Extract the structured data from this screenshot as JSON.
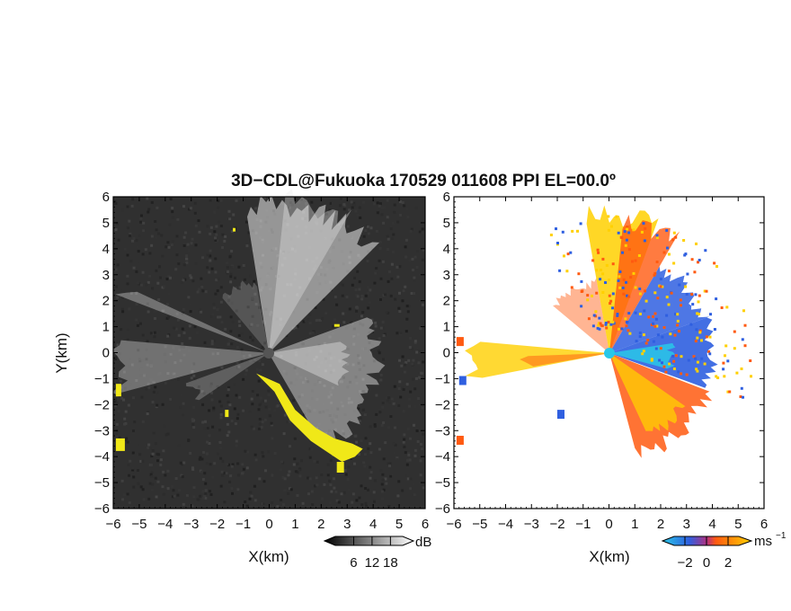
{
  "chart_data": [
    {
      "type": "heatmap",
      "panel": "left",
      "title": "3D−CDL@Fukuoka 170529 011608 PPI EL=00.0º",
      "xlabel": "X(km)",
      "ylabel": "Y(km)",
      "xlim": [
        -6,
        6
      ],
      "ylim": [
        -6,
        6
      ],
      "xticks": [
        "−6",
        "−5",
        "−4",
        "−3",
        "−2",
        "−1",
        "0",
        "1",
        "2",
        "3",
        "4",
        "5",
        "6"
      ],
      "yticks": [
        "−6",
        "−5",
        "−4",
        "−3",
        "−2",
        "−1",
        "0",
        "1",
        "2",
        "3",
        "4",
        "5",
        "6"
      ],
      "colorbar": {
        "unit": "dB",
        "ticks": [
          "6",
          "12",
          "18"
        ],
        "range": [
          0,
          22
        ]
      },
      "radar_center": [
        0,
        0
      ],
      "overlay_color": "#f0e818",
      "background_color": "#303030"
    },
    {
      "type": "heatmap",
      "panel": "right",
      "xlabel": "X(km)",
      "xlim": [
        -6,
        6
      ],
      "ylim": [
        -6,
        6
      ],
      "xticks": [
        "−6",
        "−5",
        "−4",
        "−3",
        "−2",
        "−1",
        "0",
        "1",
        "2",
        "3",
        "4",
        "5",
        "6"
      ],
      "yticks": [
        "−6",
        "−5",
        "−4",
        "−3",
        "−2",
        "−1",
        "0",
        "1",
        "2",
        "3",
        "4",
        "5",
        "6"
      ],
      "colorbar": {
        "unit": "ms",
        "unit_exponent": "−1",
        "ticks": [
          "−2",
          "0",
          "2"
        ],
        "range": [
          -3,
          3
        ]
      },
      "radar_center": [
        0,
        0
      ],
      "colors": {
        "negative": "#2f5fe0",
        "near_zero": "#29c8e8",
        "positive": "#ff5a10",
        "high": "#ffd000"
      }
    }
  ]
}
